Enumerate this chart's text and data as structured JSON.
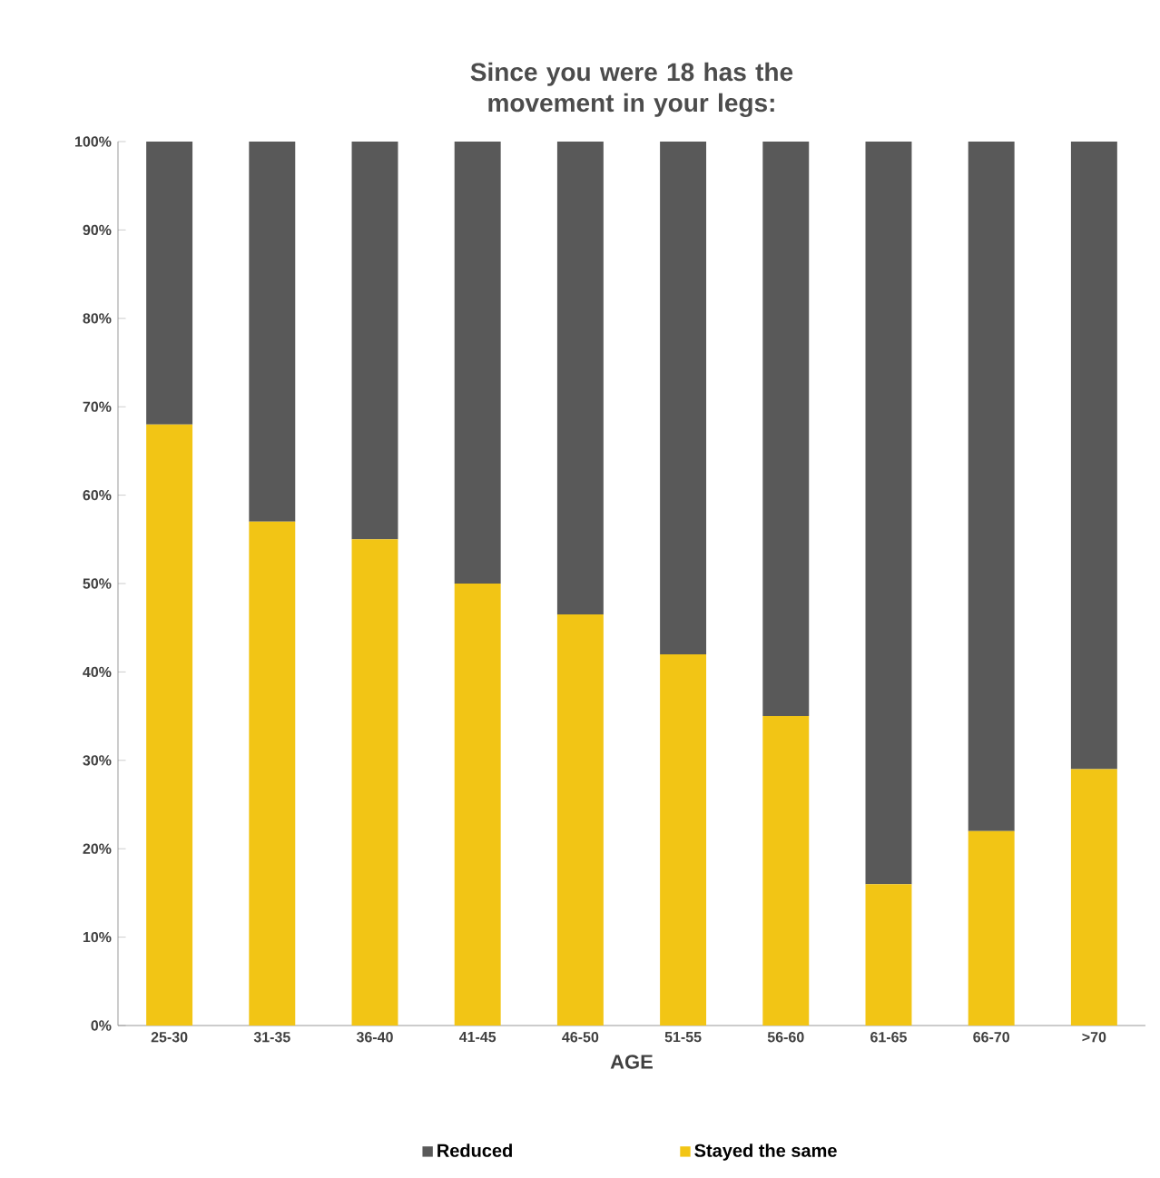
{
  "chart_data": {
    "type": "bar",
    "title": "Since you were 18 has the movement in your legs:",
    "xlabel": "AGE",
    "categories": [
      "25-30",
      "31-35",
      "36-40",
      "41-45",
      "46-50",
      "51-55",
      "56-60",
      "61-65",
      "66-70",
      ">70"
    ],
    "stacked": true,
    "legend": "bottom",
    "grid": false,
    "series": [
      {
        "name": "Stayed the same",
        "color": "#f2c515",
        "values": [
          68,
          57,
          55,
          50,
          46.5,
          42,
          35,
          16,
          22,
          29
        ]
      },
      {
        "name": "Reduced",
        "color": "#595959",
        "values": [
          32,
          43,
          45,
          50,
          53.5,
          58,
          65,
          84,
          78,
          71
        ]
      }
    ],
    "ylim": [
      0,
      100
    ],
    "yticks": [
      {
        "value": 0,
        "label": "0%"
      },
      {
        "value": 10,
        "label": "10%"
      },
      {
        "value": 20,
        "label": "20%"
      },
      {
        "value": 30,
        "label": "30%"
      },
      {
        "value": 40,
        "label": "40%"
      },
      {
        "value": 50,
        "label": "50%"
      },
      {
        "value": 60,
        "label": "60%"
      },
      {
        "value": 70,
        "label": "70%"
      },
      {
        "value": 80,
        "label": "80%"
      },
      {
        "value": 90,
        "label": "90%"
      },
      {
        "value": 100,
        "label": "100%"
      }
    ]
  }
}
